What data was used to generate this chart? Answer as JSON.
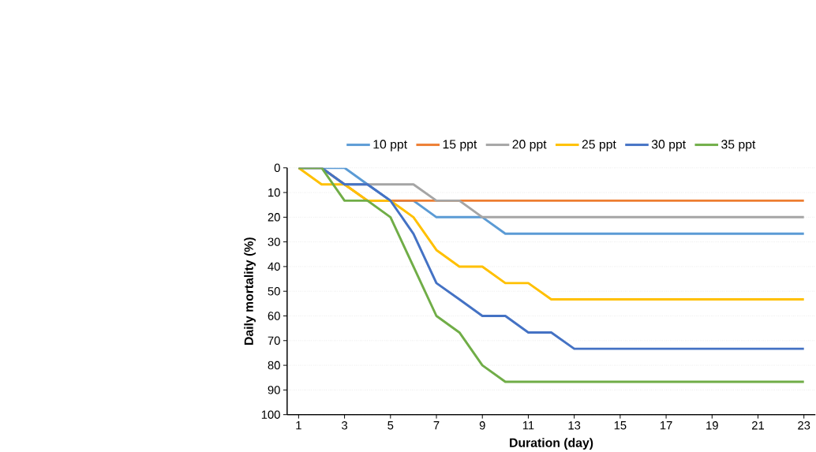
{
  "chart_data": {
    "type": "line",
    "xlabel": "Duration (day)",
    "ylabel": "Daily mortality (%)",
    "x": [
      1,
      2,
      3,
      4,
      5,
      6,
      7,
      8,
      9,
      10,
      11,
      12,
      13,
      14,
      15,
      16,
      17,
      18,
      19,
      20,
      21,
      22,
      23
    ],
    "xlim": [
      0.5,
      23.5
    ],
    "xticks": [
      1,
      3,
      5,
      7,
      9,
      11,
      13,
      15,
      17,
      19,
      21,
      23
    ],
    "ylim": [
      100,
      0
    ],
    "yticks": [
      0,
      10,
      20,
      30,
      40,
      50,
      60,
      70,
      80,
      90,
      100
    ],
    "grid": "y",
    "legend": "top",
    "marker": "none",
    "line_style": "solid",
    "series": [
      {
        "name": "10 ppt",
        "color": "#5b9bd5",
        "values": [
          0,
          0,
          0,
          6.7,
          13.3,
          13.3,
          20,
          20,
          20,
          26.7,
          26.7,
          26.7,
          26.7,
          26.7,
          26.7,
          26.7,
          26.7,
          26.7,
          26.7,
          26.7,
          26.7,
          26.7,
          26.7
        ]
      },
      {
        "name": "15 ppt",
        "color": "#ed7d31",
        "values": [
          0,
          0,
          6.7,
          13.3,
          13.3,
          13.3,
          13.3,
          13.3,
          13.3,
          13.3,
          13.3,
          13.3,
          13.3,
          13.3,
          13.3,
          13.3,
          13.3,
          13.3,
          13.3,
          13.3,
          13.3,
          13.3,
          13.3
        ]
      },
      {
        "name": "20 ppt",
        "color": "#a5a5a5",
        "values": [
          0,
          0,
          6.7,
          6.7,
          6.7,
          6.7,
          13.3,
          13.3,
          20,
          20,
          20,
          20,
          20,
          20,
          20,
          20,
          20,
          20,
          20,
          20,
          20,
          20,
          20
        ]
      },
      {
        "name": "25 ppt",
        "color": "#ffc000",
        "values": [
          0,
          6.7,
          6.7,
          13.3,
          13.3,
          20,
          33.3,
          40,
          40,
          46.7,
          46.7,
          53.3,
          53.3,
          53.3,
          53.3,
          53.3,
          53.3,
          53.3,
          53.3,
          53.3,
          53.3,
          53.3,
          53.3
        ]
      },
      {
        "name": "30 ppt",
        "color": "#4472c4",
        "values": [
          0,
          0,
          6.7,
          6.7,
          13.3,
          26.7,
          46.7,
          53.3,
          60,
          60,
          66.7,
          66.7,
          73.3,
          73.3,
          73.3,
          73.3,
          73.3,
          73.3,
          73.3,
          73.3,
          73.3,
          73.3,
          73.3
        ]
      },
      {
        "name": "35 ppt",
        "color": "#70ad47",
        "values": [
          0,
          0,
          13.3,
          13.3,
          20,
          40,
          60,
          66.7,
          80,
          86.7,
          86.7,
          86.7,
          86.7,
          86.7,
          86.7,
          86.7,
          86.7,
          86.7,
          86.7,
          86.7,
          86.7,
          86.7,
          86.7
        ]
      }
    ]
  }
}
